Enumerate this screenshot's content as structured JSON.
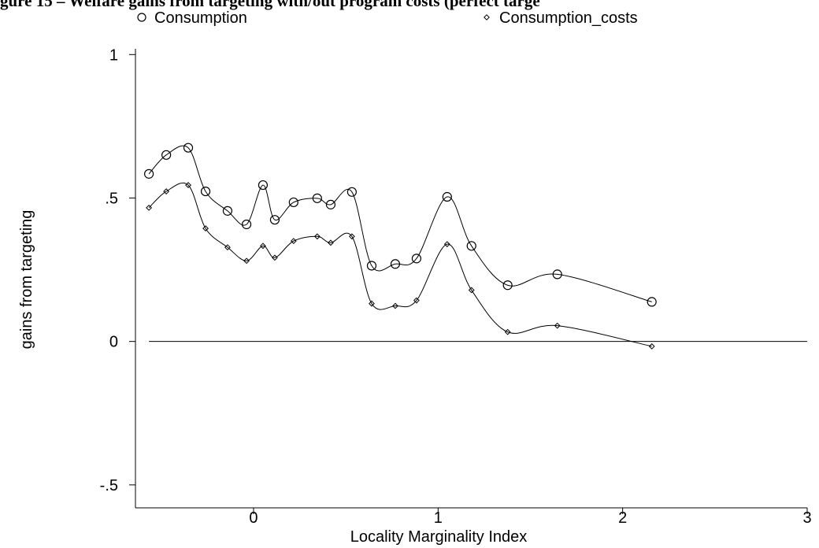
{
  "chart_data": {
    "type": "line",
    "title": "gure 15 – Welfare gains from targeting with/out program costs (perfect targe",
    "x_label": "Locality Marginality Index",
    "y_label": "gains from targeting",
    "x": [
      -0.567,
      -0.473,
      -0.354,
      -0.26,
      -0.141,
      -0.038,
      0.051,
      0.115,
      0.217,
      0.345,
      0.418,
      0.533,
      0.64,
      0.768,
      0.883,
      1.049,
      1.181,
      1.377,
      1.646,
      2.158
    ],
    "series": [
      {
        "name": "Consumption",
        "color": "#000000",
        "marker": "circle",
        "values": [
          0.584,
          0.65,
          0.675,
          0.523,
          0.455,
          0.408,
          0.545,
          0.424,
          0.485,
          0.499,
          0.477,
          0.521,
          0.264,
          0.27,
          0.289,
          0.504,
          0.333,
          0.196,
          0.234,
          0.138
        ]
      },
      {
        "name": "Consumption_costs",
        "color": "#000000",
        "marker": "diamond",
        "values": [
          0.466,
          0.523,
          0.545,
          0.394,
          0.328,
          0.281,
          0.333,
          0.292,
          0.35,
          0.366,
          0.344,
          0.366,
          0.132,
          0.124,
          0.143,
          0.339,
          0.179,
          0.033,
          0.055,
          -0.017
        ]
      }
    ],
    "xlim": [
      -0.64,
      3
    ],
    "ylim": [
      -0.58,
      1.02
    ],
    "xticks": [
      0,
      1,
      2,
      3
    ],
    "yticks": [
      {
        "value": -0.5,
        "label": "-.5"
      },
      0,
      {
        "value": 0.5,
        "label": ".5"
      },
      1
    ],
    "hline": 0,
    "smooth": true,
    "legend": "top"
  }
}
